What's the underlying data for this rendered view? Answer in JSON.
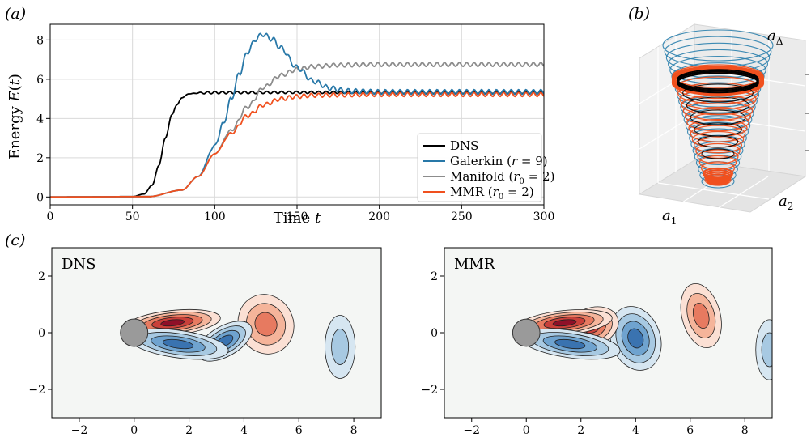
{
  "panel_labels": {
    "a": "(a)",
    "b": "(b)",
    "c": "(c)"
  },
  "chart_data": [
    {
      "type": "line",
      "panel": "(a)",
      "xlabel": "Time t",
      "ylabel": "Energy E(t)",
      "xlim": [
        0,
        300
      ],
      "ylim": [
        -0.4,
        8.8
      ],
      "xticks": [
        0,
        50,
        100,
        150,
        200,
        250,
        300
      ],
      "yticks": [
        0,
        2,
        4,
        6,
        8
      ],
      "grid": true,
      "legend_position": "lower-right",
      "series": [
        {
          "name": "DNS",
          "color": "#000000",
          "x": [
            0,
            50,
            57,
            62,
            66,
            70,
            74,
            77,
            80,
            84,
            90,
            100,
            150,
            200,
            250,
            300
          ],
          "y": [
            0,
            0.02,
            0.15,
            0.6,
            1.6,
            3.0,
            4.2,
            4.7,
            5.05,
            5.25,
            5.3,
            5.32,
            5.33,
            5.33,
            5.33,
            5.33
          ],
          "osc_amp": 0.06,
          "osc_period": 4.5,
          "osc_start": 85
        },
        {
          "name": "Galerkin (r = 9)",
          "color": "#2878a8",
          "x": [
            0,
            60,
            80,
            90,
            100,
            105,
            110,
            115,
            120,
            125,
            129,
            135,
            140,
            150,
            160,
            170,
            180,
            200,
            250,
            300
          ],
          "y": [
            0,
            0.02,
            0.35,
            1.05,
            2.6,
            3.7,
            5.0,
            6.3,
            7.4,
            8.05,
            8.3,
            8.05,
            7.6,
            6.6,
            5.9,
            5.55,
            5.4,
            5.35,
            5.35,
            5.35
          ],
          "osc_amp": 0.12,
          "osc_period": 4.5,
          "osc_start": 95
        },
        {
          "name": "Manifold (r0 = 2)",
          "color": "#8c8c8c",
          "x": [
            0,
            60,
            80,
            90,
            100,
            110,
            120,
            130,
            140,
            150,
            160,
            175,
            200,
            250,
            300
          ],
          "y": [
            0,
            0.02,
            0.35,
            1.05,
            2.2,
            3.4,
            4.6,
            5.6,
            6.2,
            6.5,
            6.65,
            6.72,
            6.75,
            6.75,
            6.75
          ],
          "osc_amp": 0.1,
          "osc_period": 4.5,
          "osc_start": 105
        },
        {
          "name": "MMR (r0 = 2)",
          "color": "#f0501e",
          "x": [
            0,
            60,
            80,
            90,
            100,
            110,
            120,
            130,
            140,
            150,
            160,
            175,
            200,
            250,
            300
          ],
          "y": [
            0,
            0.02,
            0.35,
            1.05,
            2.2,
            3.25,
            4.15,
            4.7,
            5.0,
            5.12,
            5.18,
            5.2,
            5.22,
            5.22,
            5.22
          ],
          "osc_amp": 0.1,
          "osc_period": 4.5,
          "osc_start": 105
        }
      ],
      "legend": [
        {
          "text": "DNS",
          "color": "#000000"
        },
        {
          "text": "Galerkin (r = 9)",
          "color": "#2878a8"
        },
        {
          "text": "Manifold (r0 = 2)",
          "color": "#8c8c8c"
        },
        {
          "text": "MMR (r0 = 2)",
          "color": "#f0501e"
        }
      ]
    },
    {
      "type": "scatter",
      "panel": "(b)",
      "axis_labels": {
        "x": "a1",
        "y": "a2",
        "z": "aΔ"
      },
      "galerkin_color": "#2a7fad",
      "dns_color": "#000000",
      "mmr_color": "#f0501e"
    },
    {
      "type": "heatmap",
      "panel": "(c)",
      "subplots": [
        {
          "title": "DNS",
          "xlim": [
            -3,
            9
          ],
          "ylim": [
            -3,
            3
          ],
          "xticks": [
            "−2",
            "0",
            "2",
            "4",
            "6",
            "8"
          ],
          "yticks": [
            "2",
            "0",
            "−2"
          ]
        },
        {
          "title": "MMR",
          "xlim": [
            -3,
            9
          ],
          "ylim": [
            -3,
            3
          ],
          "xticks": [
            "−2",
            "0",
            "2",
            "4",
            "6",
            "8"
          ],
          "yticks": [
            "2",
            "0",
            "−2"
          ]
        }
      ]
    }
  ]
}
